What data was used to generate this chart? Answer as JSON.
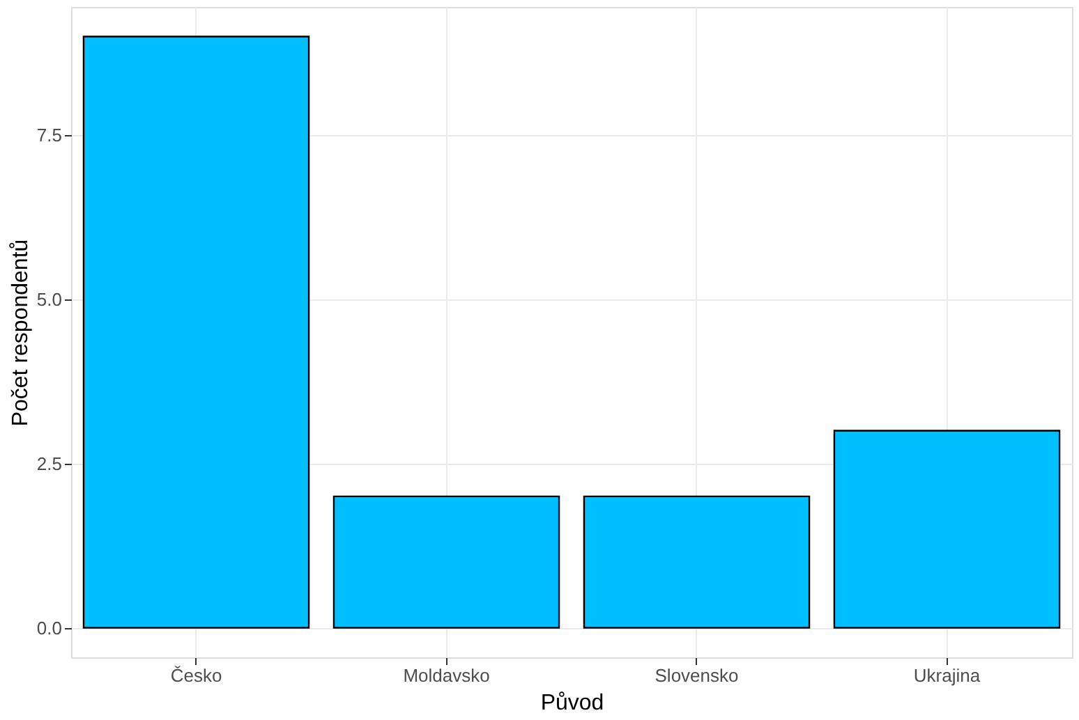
{
  "chart_data": {
    "type": "bar",
    "xlabel": "Původ",
    "ylabel": "Počet respondentů",
    "categories": [
      "Česko",
      "Moldavsko",
      "Slovensko",
      "Ukrajina"
    ],
    "values": [
      9,
      2,
      2,
      3
    ],
    "color": "#00bfff",
    "ylim": [
      -0.45,
      9.45
    ],
    "yticks": [
      {
        "value": 0,
        "label": "0.0"
      },
      {
        "value": 2.5,
        "label": "2.5"
      },
      {
        "value": 5,
        "label": "5.0"
      },
      {
        "value": 7.5,
        "label": "7.5"
      }
    ],
    "grid": true
  }
}
